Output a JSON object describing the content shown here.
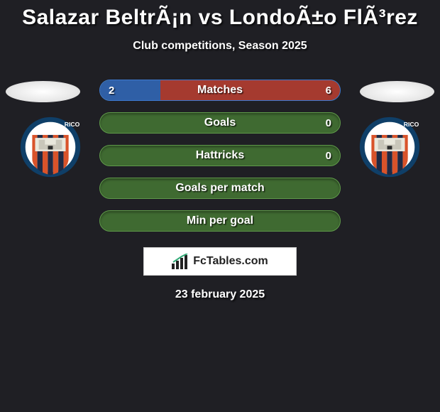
{
  "background_color": "#1f1f24",
  "title": "Salazar BeltrÃ¡n vs LondoÃ±o FlÃ³rez",
  "title_fontsize": 30,
  "subtitle": "Club competitions, Season 2025",
  "subtitle_fontsize": 16,
  "date": "23 february 2025",
  "branding": {
    "text": "FcTables.com"
  },
  "colors": {
    "white": "#ffffff",
    "empty_fill": "#3f6a31",
    "empty_border": "#5f9a4a",
    "blue_fill": "#2f5fa6",
    "blue_border": "#3e79d0",
    "red_fill": "#a53a2f",
    "red_border": "#cf4e3e"
  },
  "crest": {
    "ring_outer": "#0f3f68",
    "ring_inner": "#ffffff",
    "stripe_a": "#d9532a",
    "stripe_b": "#1f2a44",
    "banner": "#e9e7dc",
    "top_text": "RICO F",
    "top_text_right": "C"
  },
  "bars": [
    {
      "label": "Matches",
      "left": "2",
      "right": "6",
      "left_pct": 25,
      "right_pct": 75,
      "filled": true
    },
    {
      "label": "Goals",
      "left": "",
      "right": "0",
      "left_pct": 0,
      "right_pct": 0,
      "filled": false
    },
    {
      "label": "Hattricks",
      "left": "",
      "right": "0",
      "left_pct": 0,
      "right_pct": 0,
      "filled": false
    },
    {
      "label": "Goals per match",
      "left": "",
      "right": "",
      "left_pct": 0,
      "right_pct": 0,
      "filled": false
    },
    {
      "label": "Min per goal",
      "left": "",
      "right": "",
      "left_pct": 0,
      "right_pct": 0,
      "filled": false
    }
  ]
}
